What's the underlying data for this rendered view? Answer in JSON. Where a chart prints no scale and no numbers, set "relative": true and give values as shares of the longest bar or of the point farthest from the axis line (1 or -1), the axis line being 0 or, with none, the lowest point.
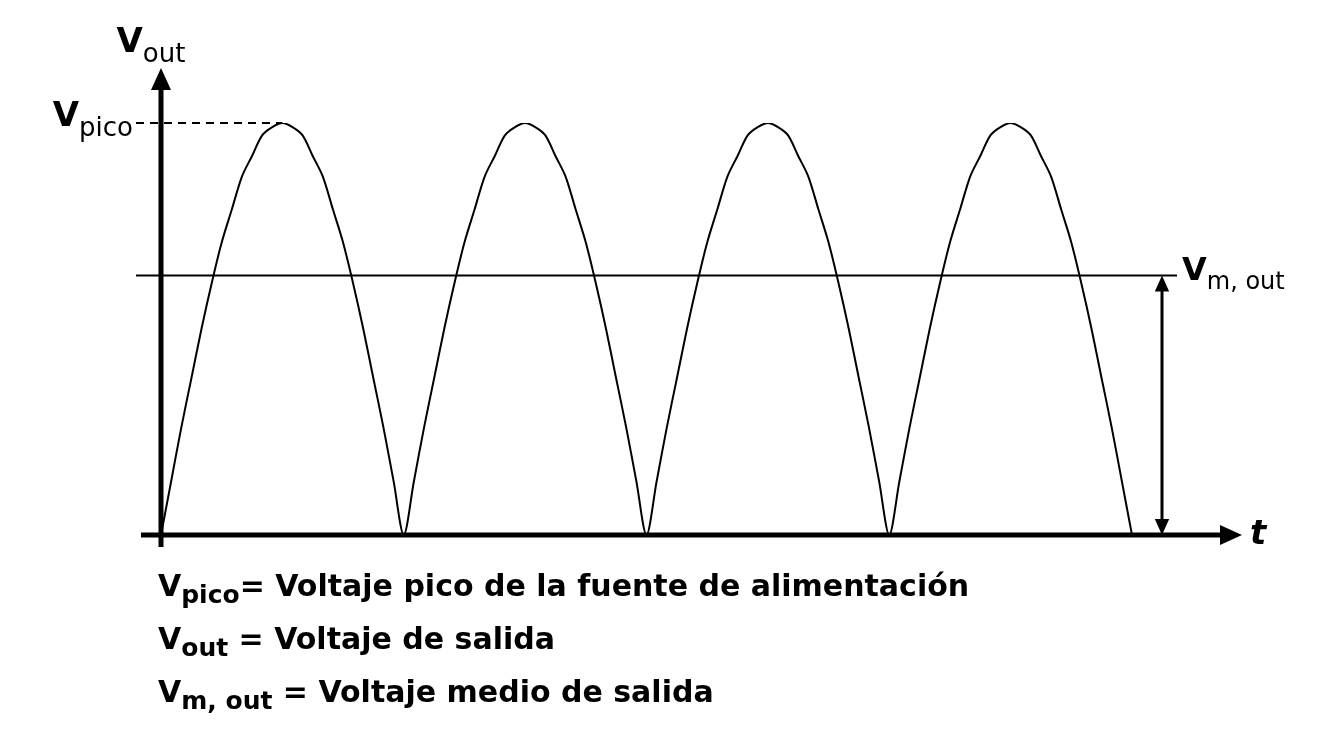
{
  "chart_data": {
    "type": "line",
    "relative": true,
    "xlabel": "t",
    "ylabel": "V$_{out}$",
    "tick_labels": false,
    "grid": false,
    "legend": false,
    "marker": "none",
    "line_style": "solid",
    "categories": [
      null,
      null,
      null,
      null,
      null,
      null,
      null,
      null,
      null,
      null,
      null,
      null,
      null,
      null,
      null,
      null,
      null,
      null,
      null,
      null,
      null,
      null,
      null,
      null,
      null,
      null,
      null,
      null,
      null,
      null,
      null,
      null,
      null,
      null,
      null,
      null,
      null,
      null,
      null,
      null,
      null,
      null,
      null,
      null,
      null,
      null,
      null,
      null,
      null,
      null,
      null,
      null,
      null,
      null,
      null,
      null,
      null,
      null,
      null,
      null,
      null,
      null,
      null,
      null,
      null,
      null,
      null,
      null,
      null,
      null,
      null,
      null,
      null,
      null,
      null,
      null,
      null,
      null,
      null,
      null,
      null,
      null,
      null,
      null,
      null,
      null,
      null,
      null,
      null,
      null,
      null,
      null,
      null,
      null,
      null,
      null,
      null
    ],
    "series": [
      {
        "color": "#000000",
        "values": [
          0,
          0.13,
          0.26,
          0.38,
          0.5,
          0.61,
          0.71,
          0.79,
          0.87,
          0.92,
          0.97,
          0.99,
          1,
          0.99,
          0.97,
          0.92,
          0.87,
          0.79,
          0.71,
          0.61,
          0.5,
          0.38,
          0.26,
          0.13,
          0,
          0.13,
          0.26,
          0.38,
          0.5,
          0.61,
          0.71,
          0.79,
          0.87,
          0.92,
          0.97,
          0.99,
          1,
          0.99,
          0.97,
          0.92,
          0.87,
          0.79,
          0.71,
          0.61,
          0.5,
          0.38,
          0.26,
          0.13,
          0,
          0.13,
          0.26,
          0.38,
          0.5,
          0.61,
          0.71,
          0.79,
          0.87,
          0.92,
          0.97,
          0.99,
          1,
          0.99,
          0.97,
          0.92,
          0.87,
          0.79,
          0.71,
          0.61,
          0.5,
          0.38,
          0.26,
          0.13,
          0,
          0.13,
          0.26,
          0.38,
          0.5,
          0.61,
          0.71,
          0.79,
          0.87,
          0.92,
          0.97,
          0.99,
          1,
          0.99,
          0.97,
          0.92,
          0.87,
          0.79,
          0.71,
          0.61,
          0.5,
          0.38,
          0.26,
          0.13,
          0
        ]
      }
    ],
    "ref_lines": [
      {
        "axis": "y",
        "value": 1,
        "label": "V$_{pico}$",
        "line_style": "dashed",
        "color": "#000000"
      },
      {
        "axis": "y",
        "value": 0.63,
        "label": "V$_{m, out}$",
        "line_style": "solid",
        "color": "#000000"
      }
    ],
    "annotations": [
      "V$_{pico}$= Voltaje pico de la fuente de alimentación",
      "V$_{out}$ = Voltaje de salida",
      "V$_{m, out}$ = Voltaje medio de salida"
    ]
  }
}
